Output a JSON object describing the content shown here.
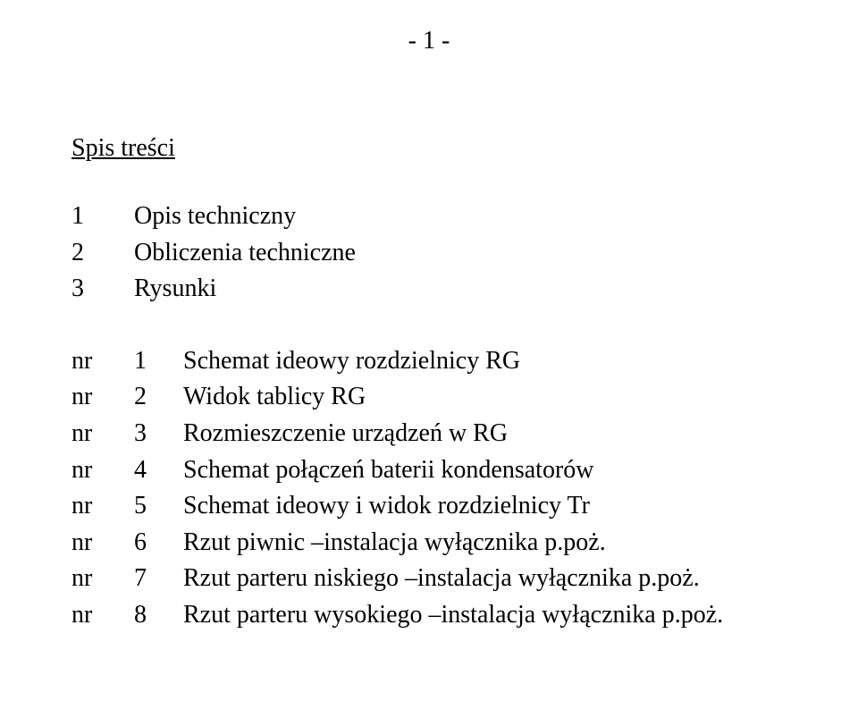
{
  "page_marker": "- 1 -",
  "toc_title": "Spis  treści",
  "sections": [
    {
      "num": "1",
      "label": "Opis  techniczny"
    },
    {
      "num": "2",
      "label": "Obliczenia techniczne"
    },
    {
      "num": "3",
      "label": "Rysunki"
    }
  ],
  "nr_label": "nr",
  "drawings": [
    {
      "num": "1",
      "label": "Schemat ideowy rozdzielnicy RG"
    },
    {
      "num": "2",
      "label": "Widok tablicy RG"
    },
    {
      "num": "3",
      "label": "Rozmieszczenie urządzeń w RG"
    },
    {
      "num": "4",
      "label": "Schemat połączeń baterii kondensatorów"
    },
    {
      "num": "5",
      "label": "Schemat ideowy i widok rozdzielnicy Tr"
    },
    {
      "num": "6",
      "label": "Rzut piwnic –instalacja wyłącznika p.poż."
    },
    {
      "num": "7",
      "label": "Rzut parteru niskiego –instalacja wyłącznika p.poż."
    },
    {
      "num": "8",
      "label": "Rzut parteru wysokiego –instalacja wyłącznika p.poż."
    }
  ],
  "colors": {
    "background": "#ffffff",
    "text": "#000000"
  },
  "typography": {
    "font_family": "Times New Roman",
    "body_fontsize_pt": 21,
    "line_height": 1.45
  }
}
